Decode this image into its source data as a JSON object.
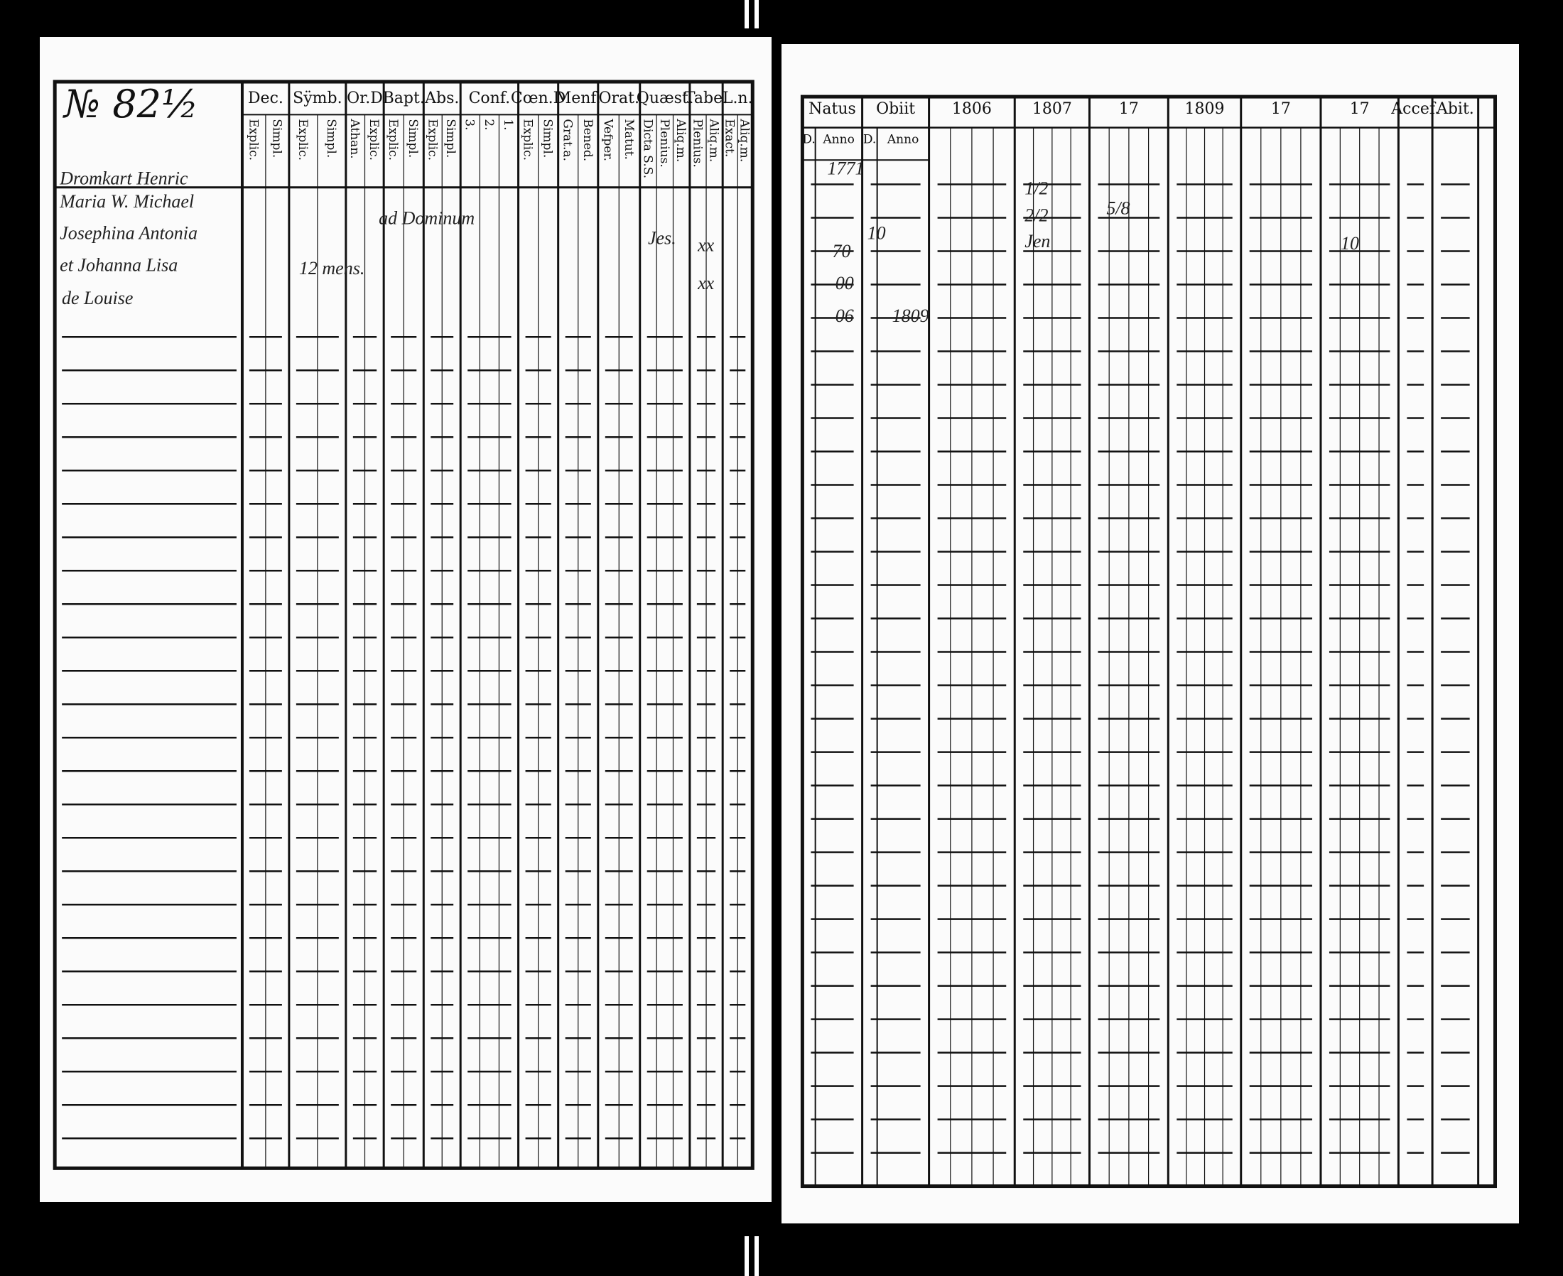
{
  "left_page": {
    "number": "№ 82½",
    "headers": [
      {
        "title": "Dec.",
        "subs": [
          "Explic.",
          "Simpl."
        ]
      },
      {
        "title": "Sÿmb.",
        "subs": [
          "Explic.",
          "Simpl."
        ]
      },
      {
        "title": "Or.D",
        "subs": [
          "Athan.",
          "Explic."
        ]
      },
      {
        "title": "Bapt.",
        "subs": [
          "Explic.",
          "Simpl."
        ]
      },
      {
        "title": "Abs.",
        "subs": [
          "Explic.",
          "Simpl."
        ]
      },
      {
        "title": "Conf.",
        "subs": [
          "3.",
          "2.",
          "1."
        ]
      },
      {
        "title": "Cœn.D",
        "subs": [
          "Explic.",
          "Simpl."
        ]
      },
      {
        "title": "Menf.",
        "subs": [
          "Grat.a.",
          "Bened."
        ]
      },
      {
        "title": "Orat.",
        "subs": [
          "Vefper.",
          "Matut."
        ]
      },
      {
        "title": "Quæst.",
        "subs": [
          "Dicta S.S.",
          "Plenius.",
          "Aliq.m."
        ]
      },
      {
        "title": "Tabe.",
        "subs": [
          "Plenius.",
          "Aliq.m."
        ]
      },
      {
        "title": "L.n.",
        "subs": [
          "Exact.",
          "Aliq.m."
        ]
      }
    ],
    "names": [
      "Dromkart Henric",
      "Maria W. Michael",
      "Josephina Antonia",
      "et Johanna Lisa",
      "de Louise"
    ],
    "notes": [
      "ad Dominum",
      "12 mens.",
      "Jes.",
      "xx",
      "xx"
    ]
  },
  "right_page": {
    "headers": [
      "Natus",
      "Obiit",
      "1806",
      "1807",
      "17",
      "1809",
      "17",
      "17",
      "Accef.",
      "Abit."
    ],
    "subheaders": [
      "D.",
      "Anno",
      "D.",
      "Anno"
    ],
    "notes": [
      "1771",
      "70",
      "00",
      "06",
      "10",
      "1809",
      "1/2",
      "2/2",
      "Jen",
      "5/8",
      "10"
    ]
  }
}
